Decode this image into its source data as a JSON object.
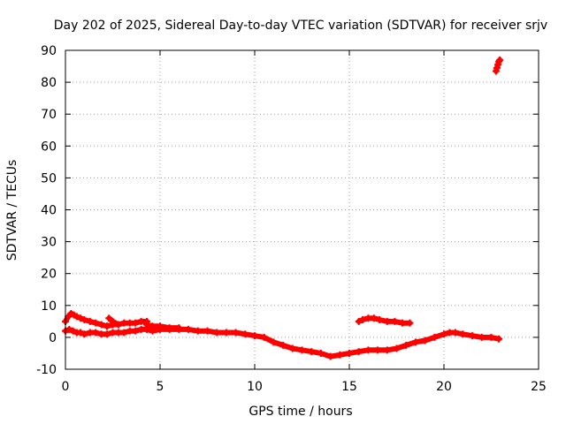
{
  "chart_data": {
    "type": "scatter",
    "title": "Day 202 of 2025, Sidereal Day-to-day VTEC variation (SDTVAR) for receiver srjv",
    "xlabel": "GPS time / hours",
    "ylabel": "SDTVAR / TECUs",
    "xlim": [
      0,
      25
    ],
    "ylim": [
      -10,
      90
    ],
    "xticks": [
      0,
      5,
      10,
      15,
      20,
      25
    ],
    "yticks": [
      -10,
      0,
      10,
      20,
      30,
      40,
      50,
      60,
      70,
      80,
      90
    ],
    "grid": true,
    "series": [
      {
        "name": "SDTVAR",
        "color": "#ff0000",
        "segments": [
          {
            "x": [
              0.0,
              0.2,
              0.4,
              0.6,
              0.8,
              1.0,
              1.3,
              1.6,
              1.9,
              2.2,
              2.5,
              2.8,
              3.1,
              3.4,
              3.7,
              4.0,
              4.3,
              4.6,
              5.0,
              5.5,
              6.0,
              6.5,
              7.0,
              7.5,
              8.0,
              8.5,
              9.0,
              9.5,
              10.0,
              10.5,
              11.0,
              11.5,
              12.0,
              12.5,
              13.0,
              13.5,
              14.0,
              14.5,
              15.0,
              15.5,
              16.0,
              16.5,
              17.0,
              17.5,
              18.0,
              18.5,
              19.0,
              19.5,
              20.0,
              20.3,
              20.6,
              21.0,
              21.5,
              22.0,
              22.5,
              22.9
            ],
            "y": [
              2.0,
              2.5,
              2.0,
              1.5,
              1.5,
              1.0,
              1.5,
              1.5,
              1.0,
              1.0,
              1.5,
              1.5,
              1.5,
              2.0,
              2.0,
              2.5,
              2.5,
              2.0,
              2.5,
              2.5,
              2.5,
              2.5,
              2.0,
              2.0,
              1.5,
              1.5,
              1.5,
              1.0,
              0.5,
              0.0,
              -1.5,
              -2.5,
              -3.5,
              -4.0,
              -4.5,
              -5.0,
              -6.0,
              -5.5,
              -5.0,
              -4.5,
              -4.0,
              -4.0,
              -4.0,
              -3.5,
              -2.5,
              -1.5,
              -1.0,
              0.0,
              1.0,
              1.5,
              1.5,
              1.0,
              0.5,
              0.0,
              0.0,
              -0.5
            ]
          },
          {
            "x": [
              0.0,
              0.15,
              0.3,
              0.45,
              0.6,
              0.8,
              1.0,
              1.3,
              1.6,
              1.9,
              2.2
            ],
            "y": [
              5.0,
              6.5,
              7.5,
              7.0,
              6.5,
              6.0,
              5.5,
              5.0,
              4.5,
              4.0,
              3.5
            ]
          },
          {
            "x": [
              2.2,
              2.5,
              2.8,
              3.1,
              3.4,
              3.7,
              4.0,
              4.3
            ],
            "y": [
              3.5,
              4.0,
              4.0,
              4.5,
              4.5,
              4.5,
              5.0,
              5.0
            ]
          },
          {
            "x": [
              4.3,
              4.6,
              5.0,
              5.5,
              6.0
            ],
            "y": [
              4.0,
              3.5,
              3.5,
              3.0,
              3.0
            ]
          },
          {
            "x": [
              2.3,
              2.5,
              2.8
            ],
            "y": [
              6.0,
              5.0,
              4.0
            ]
          },
          {
            "x": [
              15.5,
              15.7,
              16.0,
              16.3,
              16.6,
              17.0,
              17.4,
              17.8,
              18.2
            ],
            "y": [
              5.0,
              5.5,
              6.0,
              6.0,
              5.5,
              5.0,
              5.0,
              4.5,
              4.5
            ]
          },
          {
            "x": [
              22.75,
              22.8,
              22.85,
              22.9,
              22.95
            ],
            "y": [
              83.5,
              84.5,
              85.5,
              86.5,
              87.0
            ]
          }
        ]
      }
    ]
  }
}
